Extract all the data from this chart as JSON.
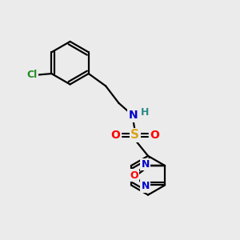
{
  "background_color": "#ebebeb",
  "bond_color": "#000000",
  "atom_colors": {
    "Cl": "#228B22",
    "N": "#0000CD",
    "H": "#2E8B8B",
    "S": "#DAA520",
    "O": "#FF0000"
  },
  "figsize": [
    3.0,
    3.0
  ],
  "dpi": 100
}
